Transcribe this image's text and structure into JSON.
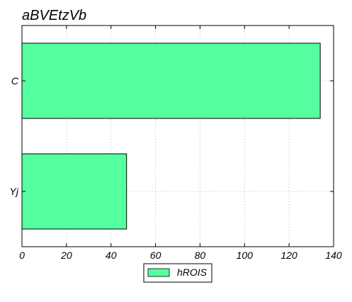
{
  "chart_data": {
    "type": "bar",
    "orientation": "horizontal",
    "title": "aBVEtzVb",
    "xlabel": "",
    "ylabel": "",
    "categories": [
      "C",
      "Yj"
    ],
    "series": [
      {
        "name": "hROIS",
        "values": [
          134,
          47
        ],
        "color": "#55ff9f"
      }
    ],
    "xlim": [
      0,
      140
    ],
    "xticks": [
      0,
      20,
      40,
      60,
      80,
      100,
      120,
      140
    ],
    "grid": true,
    "legend_position": "bottom-center"
  }
}
